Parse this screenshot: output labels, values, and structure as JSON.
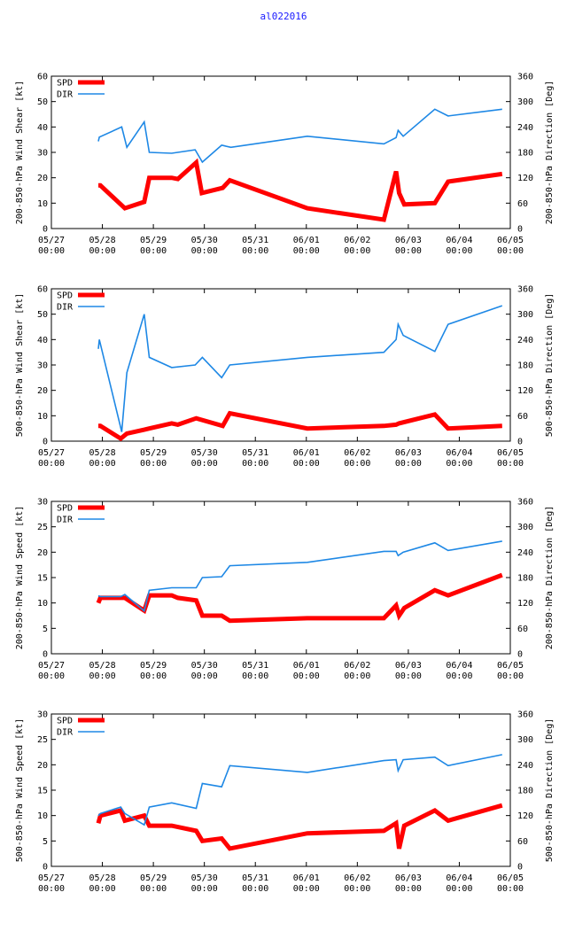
{
  "title": "al022016",
  "colors": {
    "spd": "#ff0000",
    "dir": "#1e88e5",
    "title": "#1a1aff"
  },
  "chart_data": [
    {
      "type": "line",
      "ylabel": "200-850-hPa Wind Shear [kt]",
      "y2label": "200-850-hPa Direction [Deg]",
      "ylim": [
        0,
        60
      ],
      "yticks": [
        0,
        10,
        20,
        30,
        40,
        50,
        60
      ],
      "y2lim": [
        0,
        360
      ],
      "y2ticks": [
        0,
        60,
        120,
        180,
        240,
        300,
        360
      ],
      "xlim": [
        0,
        9
      ],
      "xticks": [
        {
          "top": "05/27",
          "bottom": "00:00"
        },
        {
          "top": "05/28",
          "bottom": "00:00"
        },
        {
          "top": "05/29",
          "bottom": "00:00"
        },
        {
          "top": "05/30",
          "bottom": "00:00"
        },
        {
          "top": "05/31",
          "bottom": "00:00"
        },
        {
          "top": "06/01",
          "bottom": "00:00"
        },
        {
          "top": "06/02",
          "bottom": "00:00"
        },
        {
          "top": "06/03",
          "bottom": "00:00"
        },
        {
          "top": "06/04",
          "bottom": "00:00"
        },
        {
          "top": "06/05",
          "bottom": "00:00"
        }
      ],
      "series": [
        {
          "name": "SPD",
          "axis": "y",
          "x": [
            0.92,
            0.96,
            1.44,
            1.82,
            1.92,
            2.36,
            2.48,
            2.84,
            2.95,
            3.36,
            3.5,
            5.02,
            6.52,
            6.76,
            6.82,
            6.92,
            7.52,
            7.78,
            8.84
          ],
          "y": [
            17,
            17,
            8,
            10.5,
            20,
            20,
            19.5,
            26,
            14,
            16,
            19,
            8,
            3.5,
            22.5,
            14,
            9.5,
            10,
            18.5,
            21.5
          ]
        },
        {
          "name": "DIR",
          "axis": "y2",
          "x": [
            0.92,
            0.94,
            1.38,
            1.48,
            1.82,
            1.92,
            2.36,
            2.82,
            2.96,
            3.34,
            3.52,
            5.02,
            6.52,
            6.76,
            6.8,
            6.9,
            7.52,
            7.78,
            8.84
          ],
          "y": [
            206,
            216,
            240,
            192,
            252,
            180,
            178,
            186,
            157,
            197,
            192,
            218,
            200,
            215,
            232,
            218,
            282,
            266,
            282
          ]
        }
      ]
    },
    {
      "type": "line",
      "ylabel": "500-850-hPa Wind Shear [kt]",
      "y2label": "500-850-hPa Direction [Deg]",
      "ylim": [
        0,
        60
      ],
      "yticks": [
        0,
        10,
        20,
        30,
        40,
        50,
        60
      ],
      "y2lim": [
        0,
        360
      ],
      "y2ticks": [
        0,
        60,
        120,
        180,
        240,
        300,
        360
      ],
      "xlim": [
        0,
        9
      ],
      "xticks": [
        {
          "top": "05/27",
          "bottom": "00:00"
        },
        {
          "top": "05/28",
          "bottom": "00:00"
        },
        {
          "top": "05/29",
          "bottom": "00:00"
        },
        {
          "top": "05/30",
          "bottom": "00:00"
        },
        {
          "top": "05/31",
          "bottom": "00:00"
        },
        {
          "top": "06/01",
          "bottom": "00:00"
        },
        {
          "top": "06/02",
          "bottom": "00:00"
        },
        {
          "top": "06/03",
          "bottom": "00:00"
        },
        {
          "top": "06/04",
          "bottom": "00:00"
        },
        {
          "top": "06/05",
          "bottom": "00:00"
        }
      ],
      "series": [
        {
          "name": "SPD",
          "axis": "y",
          "x": [
            0.92,
            0.96,
            1.36,
            1.48,
            1.82,
            1.92,
            2.36,
            2.48,
            2.84,
            3.36,
            3.5,
            5.02,
            6.52,
            6.76,
            6.82,
            7.52,
            7.78,
            8.84
          ],
          "y": [
            6,
            6,
            1,
            3,
            4.5,
            5,
            7,
            6.5,
            9,
            6,
            11,
            5,
            6,
            6.5,
            7,
            10.5,
            5,
            6
          ]
        },
        {
          "name": "DIR",
          "axis": "y2",
          "x": [
            0.92,
            0.94,
            1.38,
            1.48,
            1.82,
            1.92,
            2.36,
            2.82,
            2.96,
            3.34,
            3.5,
            5.02,
            6.52,
            6.76,
            6.8,
            6.9,
            7.52,
            7.78,
            8.84
          ],
          "y": [
            218,
            240,
            22,
            162,
            300,
            198,
            174,
            180,
            198,
            150,
            180,
            198,
            210,
            240,
            276,
            250,
            212,
            276,
            320
          ]
        }
      ]
    },
    {
      "type": "line",
      "ylabel": "200-850-hPa Wind Speed [kt]",
      "y2label": "200-850-hPa Direction [Deg]",
      "ylim": [
        0,
        30
      ],
      "yticks": [
        0,
        5,
        10,
        15,
        20,
        25,
        30
      ],
      "y2lim": [
        0,
        360
      ],
      "y2ticks": [
        0,
        60,
        120,
        180,
        240,
        300,
        360
      ],
      "xlim": [
        0,
        9
      ],
      "xticks": [
        {
          "top": "05/27",
          "bottom": "00:00"
        },
        {
          "top": "05/28",
          "bottom": "00:00"
        },
        {
          "top": "05/29",
          "bottom": "00:00"
        },
        {
          "top": "05/30",
          "bottom": "00:00"
        },
        {
          "top": "05/31",
          "bottom": "00:00"
        },
        {
          "top": "06/01",
          "bottom": "00:00"
        },
        {
          "top": "06/02",
          "bottom": "00:00"
        },
        {
          "top": "06/03",
          "bottom": "00:00"
        },
        {
          "top": "06/04",
          "bottom": "00:00"
        },
        {
          "top": "06/05",
          "bottom": "00:00"
        }
      ],
      "series": [
        {
          "name": "SPD",
          "axis": "y",
          "x": [
            0.92,
            0.96,
            1.36,
            1.44,
            1.82,
            1.92,
            2.36,
            2.48,
            2.84,
            2.96,
            3.34,
            3.5,
            5.02,
            6.52,
            6.76,
            6.82,
            6.92,
            7.52,
            7.78,
            8.84
          ],
          "y": [
            10,
            11,
            11,
            11,
            8.5,
            11.5,
            11.5,
            11,
            10.5,
            7.5,
            7.5,
            6.5,
            7,
            7,
            9.5,
            7.5,
            9,
            12.5,
            11.5,
            15.5
          ]
        },
        {
          "name": "DIR",
          "axis": "y2",
          "x": [
            0.92,
            0.96,
            1.36,
            1.44,
            1.82,
            1.92,
            2.36,
            2.84,
            2.96,
            3.34,
            3.5,
            5.02,
            6.52,
            6.76,
            6.8,
            6.9,
            7.52,
            7.78,
            8.84
          ],
          "y": [
            137,
            135,
            135,
            140,
            101,
            150,
            156,
            156,
            180,
            182,
            208,
            216,
            242,
            242,
            232,
            240,
            262,
            244,
            266
          ]
        }
      ]
    },
    {
      "type": "line",
      "ylabel": "500-850-hPa Wind Speed [kt]",
      "y2label": "500-850-hPa Direction [Deg]",
      "ylim": [
        0,
        30
      ],
      "yticks": [
        0,
        5,
        10,
        15,
        20,
        25,
        30
      ],
      "y2lim": [
        0,
        360
      ],
      "y2ticks": [
        0,
        60,
        120,
        180,
        240,
        300,
        360
      ],
      "xlim": [
        0,
        9
      ],
      "xticks": [
        {
          "top": "05/27",
          "bottom": "00:00"
        },
        {
          "top": "05/28",
          "bottom": "00:00"
        },
        {
          "top": "05/29",
          "bottom": "00:00"
        },
        {
          "top": "05/30",
          "bottom": "00:00"
        },
        {
          "top": "05/31",
          "bottom": "00:00"
        },
        {
          "top": "06/01",
          "bottom": "00:00"
        },
        {
          "top": "06/02",
          "bottom": "00:00"
        },
        {
          "top": "06/03",
          "bottom": "00:00"
        },
        {
          "top": "06/04",
          "bottom": "00:00"
        },
        {
          "top": "06/05",
          "bottom": "00:00"
        }
      ],
      "series": [
        {
          "name": "SPD",
          "axis": "y",
          "x": [
            0.92,
            0.96,
            1.36,
            1.44,
            1.82,
            1.92,
            2.36,
            2.84,
            2.96,
            3.34,
            3.5,
            5.02,
            6.52,
            6.76,
            6.82,
            6.92,
            7.52,
            7.78,
            8.84
          ],
          "y": [
            8.5,
            10,
            11,
            9,
            10,
            8,
            8,
            7,
            5,
            5.5,
            3.5,
            6.5,
            7,
            8.5,
            3.5,
            8,
            11,
            9,
            12
          ]
        },
        {
          "name": "DIR",
          "axis": "y2",
          "x": [
            0.92,
            0.96,
            1.36,
            1.44,
            1.82,
            1.92,
            2.36,
            2.84,
            2.96,
            3.34,
            3.5,
            5.02,
            6.52,
            6.76,
            6.8,
            6.9,
            7.52,
            7.78,
            8.84
          ],
          "y": [
            120,
            125,
            140,
            125,
            98,
            140,
            150,
            137,
            196,
            188,
            238,
            222,
            250,
            252,
            226,
            252,
            258,
            238,
            264
          ]
        }
      ]
    }
  ]
}
